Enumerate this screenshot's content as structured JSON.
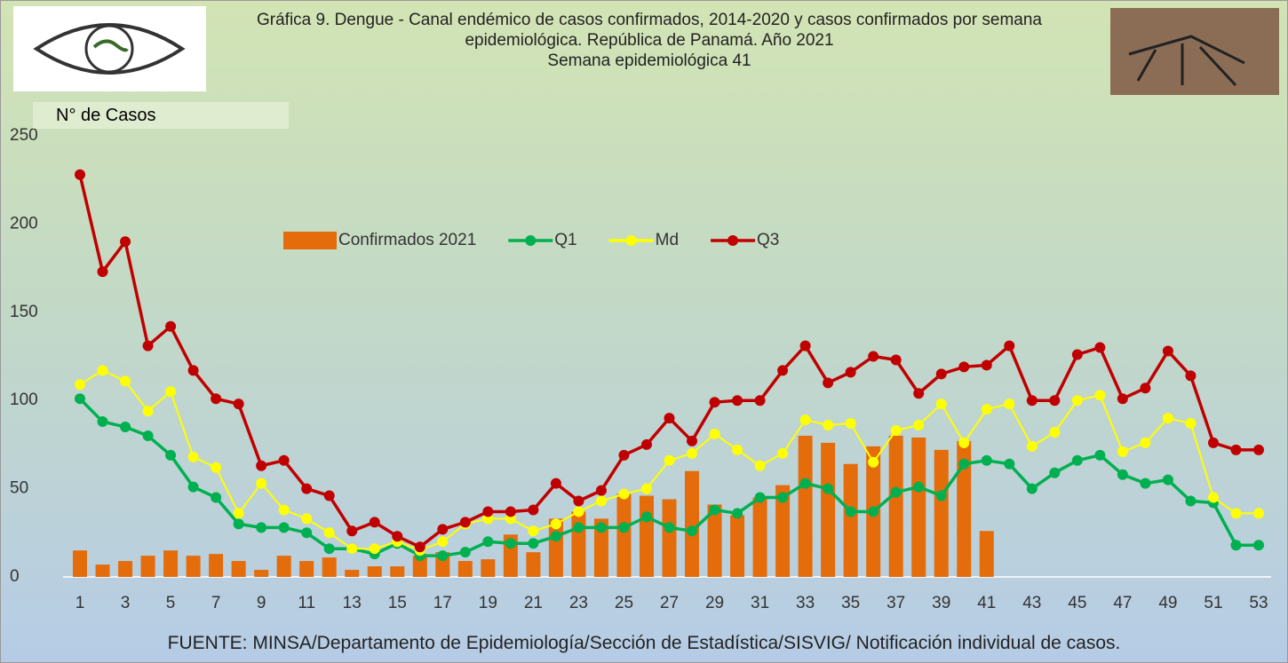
{
  "chart_data": {
    "type": "bar-line",
    "title": "Gráfica 9. Dengue - Canal endémico de casos confirmados, 2014-2020 y casos confirmados por semana epidemiológica. República de Panamá. Año 2021",
    "subtitle": "Semana epidemiológica 41",
    "y_label": "N° de Casos",
    "source": "FUENTE: MINSA/Departamento de Epidemiología/Sección de Estadística/SISVIG/ Notificación individual de casos.",
    "categories": [
      "1",
      null,
      "3",
      null,
      "5",
      null,
      "7",
      null,
      "9",
      null,
      "11",
      null,
      "13",
      null,
      "15",
      null,
      "17",
      null,
      "19",
      null,
      "21",
      null,
      "23",
      null,
      "25",
      null,
      "27",
      null,
      "29",
      null,
      "31",
      null,
      "33",
      null,
      "35",
      null,
      "37",
      null,
      "39",
      null,
      "41",
      null,
      "43",
      null,
      "45",
      null,
      "47",
      null,
      "49",
      null,
      "51",
      null,
      "53"
    ],
    "ylim": [
      0,
      250
    ],
    "yticks": [
      0,
      50,
      100,
      150,
      200,
      250
    ],
    "grid": false,
    "legend": "center",
    "series": [
      {
        "name": "Confirmados 2021",
        "type": "bar",
        "color": "#e46c0a",
        "values": [
          15,
          7,
          9,
          12,
          15,
          12,
          13,
          9,
          4,
          12,
          9,
          11,
          4,
          6,
          6,
          12,
          14,
          9,
          10,
          24,
          14,
          33,
          37,
          33,
          47,
          46,
          44,
          60,
          41,
          35,
          45,
          52,
          80,
          76,
          64,
          74,
          80,
          79,
          72,
          77,
          26,
          null,
          null,
          null,
          null,
          null,
          null,
          null,
          null,
          null,
          null,
          null,
          null
        ]
      },
      {
        "name": "Q1",
        "type": "line",
        "color": "#00b050",
        "values": [
          101,
          88,
          85,
          80,
          69,
          51,
          45,
          30,
          28,
          28,
          25,
          16,
          16,
          13,
          19,
          12,
          12,
          14,
          20,
          19,
          19,
          23,
          28,
          28,
          28,
          34,
          28,
          26,
          38,
          36,
          45,
          45,
          53,
          50,
          37,
          37,
          48,
          51,
          46,
          64,
          66,
          64,
          50,
          59,
          66,
          69,
          58,
          53,
          55,
          43,
          42,
          18,
          18
        ]
      },
      {
        "name": "Md",
        "type": "line",
        "color": "#ffff00",
        "values": [
          109,
          117,
          111,
          94,
          105,
          68,
          62,
          36,
          53,
          38,
          33,
          25,
          16,
          16,
          20,
          15,
          20,
          30,
          33,
          33,
          26,
          30,
          37,
          43,
          47,
          50,
          66,
          70,
          81,
          72,
          63,
          70,
          89,
          86,
          87,
          65,
          83,
          86,
          98,
          76,
          95,
          98,
          74,
          82,
          100,
          103,
          71,
          76,
          90,
          87,
          45,
          36,
          36
        ]
      },
      {
        "name": "Q3",
        "type": "line",
        "color": "#c00000",
        "values": [
          228,
          173,
          190,
          131,
          142,
          117,
          101,
          98,
          63,
          66,
          50,
          46,
          26,
          31,
          23,
          17,
          27,
          31,
          37,
          37,
          38,
          53,
          43,
          49,
          69,
          75,
          90,
          77,
          99,
          100,
          100,
          117,
          131,
          110,
          116,
          125,
          123,
          104,
          115,
          119,
          120,
          131,
          100,
          100,
          126,
          130,
          101,
          107,
          128,
          114,
          76,
          72,
          72
        ]
      }
    ]
  }
}
